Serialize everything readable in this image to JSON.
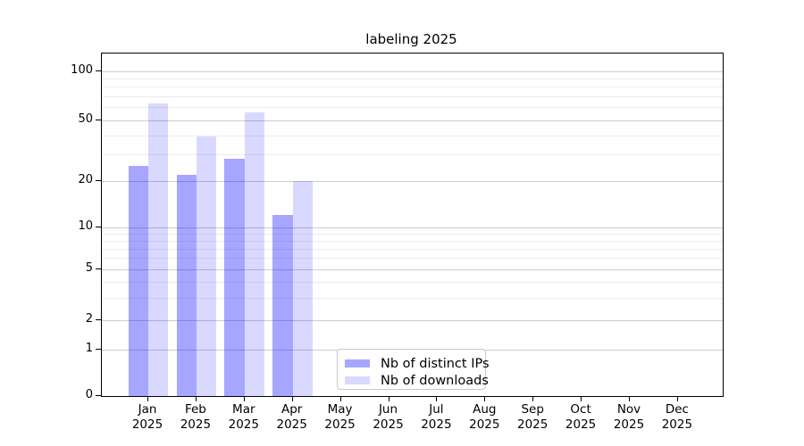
{
  "chart_data": {
    "type": "bar",
    "title": "labeling 2025",
    "year": "2025",
    "months": [
      "Jan",
      "Feb",
      "Mar",
      "Apr",
      "May",
      "Jun",
      "Jul",
      "Aug",
      "Sep",
      "Oct",
      "Nov",
      "Dec"
    ],
    "categories": [
      "Jan 2025",
      "Feb 2025",
      "Mar 2025",
      "Apr 2025",
      "May 2025",
      "Jun 2025",
      "Jul 2025",
      "Aug 2025",
      "Sep 2025",
      "Oct 2025",
      "Nov 2025",
      "Dec 2025"
    ],
    "series": [
      {
        "name": "Nb of distinct IPs",
        "color": "rgba(0,0,255,0.35)",
        "color_hex": "#a6a6ff",
        "values": [
          25,
          22,
          28,
          12,
          0,
          0,
          0,
          0,
          0,
          0,
          0,
          0
        ]
      },
      {
        "name": "Nb of downloads",
        "color": "rgba(0,0,255,0.15)",
        "color_hex": "#d9d9ff",
        "values": [
          63,
          39,
          56,
          20,
          0,
          0,
          0,
          0,
          0,
          0,
          0,
          0
        ]
      }
    ],
    "y_axis": {
      "scale": "symlog",
      "ticks": [
        0,
        1,
        2,
        5,
        10,
        20,
        50,
        100
      ],
      "minor_ticks": [
        3,
        4,
        6,
        7,
        8,
        9,
        30,
        40,
        60,
        70,
        80,
        90
      ],
      "range_top": 130
    },
    "x_axis": {
      "label_lines": 2
    },
    "legend": {
      "position": "lower-left-of-center",
      "border": true
    },
    "grid": "horizontal major and minor"
  }
}
